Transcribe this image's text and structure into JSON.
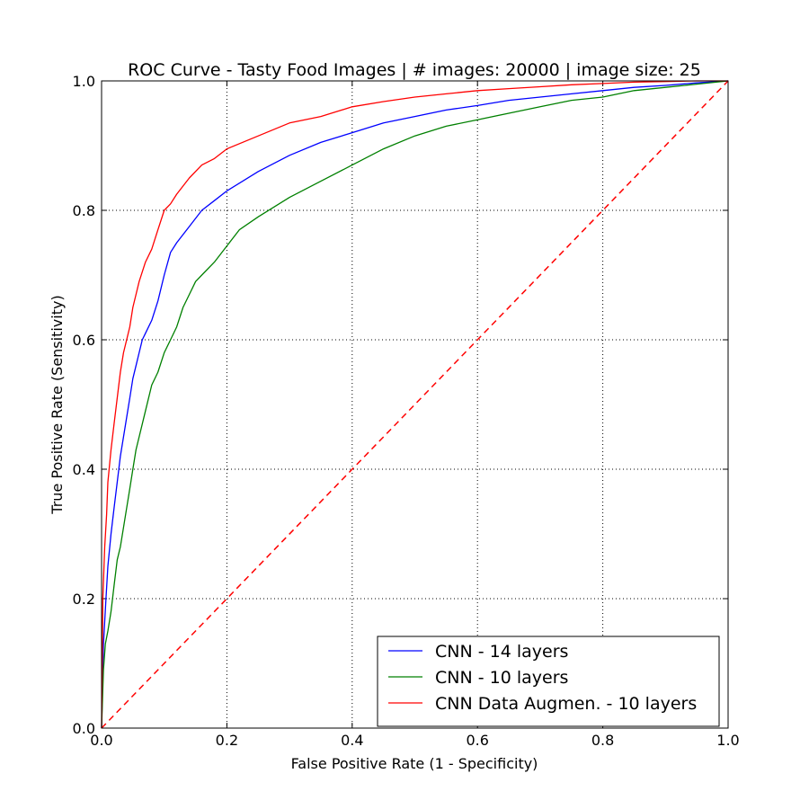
{
  "chart_data": {
    "type": "line",
    "title": "ROC Curve - Tasty Food Images | # images: 20000 | image size: 25",
    "xlabel": "False Positive Rate (1 - Specificity)",
    "ylabel": "True Positive Rate (Sensitivity)",
    "xlim": [
      0.0,
      1.0
    ],
    "ylim": [
      0.0,
      1.0
    ],
    "xticks": [
      "0.0",
      "0.2",
      "0.4",
      "0.6",
      "0.8",
      "1.0"
    ],
    "yticks": [
      "0.0",
      "0.2",
      "0.4",
      "0.6",
      "0.8",
      "1.0"
    ],
    "grid": true,
    "legend_position": "lower-right",
    "series": [
      {
        "name": "CNN - 14 layers",
        "color": "#0000ff",
        "x": [
          0.0,
          0.003,
          0.007,
          0.01,
          0.015,
          0.02,
          0.025,
          0.03,
          0.035,
          0.04,
          0.045,
          0.05,
          0.055,
          0.06,
          0.065,
          0.07,
          0.08,
          0.09,
          0.1,
          0.11,
          0.12,
          0.14,
          0.16,
          0.18,
          0.2,
          0.25,
          0.3,
          0.35,
          0.4,
          0.45,
          0.5,
          0.55,
          0.6,
          0.65,
          0.7,
          0.75,
          0.8,
          0.85,
          0.9,
          0.95,
          1.0
        ],
        "y": [
          0.0,
          0.13,
          0.2,
          0.25,
          0.3,
          0.34,
          0.38,
          0.42,
          0.45,
          0.48,
          0.51,
          0.54,
          0.56,
          0.58,
          0.6,
          0.61,
          0.63,
          0.66,
          0.7,
          0.735,
          0.75,
          0.775,
          0.8,
          0.815,
          0.83,
          0.86,
          0.885,
          0.905,
          0.92,
          0.935,
          0.945,
          0.955,
          0.962,
          0.97,
          0.975,
          0.98,
          0.985,
          0.99,
          0.993,
          0.997,
          1.0
        ]
      },
      {
        "name": "CNN - 10 layers",
        "color": "#008000",
        "x": [
          0.0,
          0.003,
          0.006,
          0.01,
          0.015,
          0.02,
          0.025,
          0.03,
          0.035,
          0.04,
          0.045,
          0.05,
          0.055,
          0.06,
          0.07,
          0.08,
          0.09,
          0.1,
          0.11,
          0.12,
          0.13,
          0.14,
          0.15,
          0.16,
          0.18,
          0.2,
          0.22,
          0.25,
          0.3,
          0.35,
          0.4,
          0.45,
          0.5,
          0.55,
          0.6,
          0.65,
          0.7,
          0.75,
          0.8,
          0.85,
          0.9,
          0.95,
          1.0
        ],
        "y": [
          0.0,
          0.09,
          0.13,
          0.15,
          0.18,
          0.22,
          0.26,
          0.28,
          0.31,
          0.34,
          0.37,
          0.4,
          0.43,
          0.45,
          0.49,
          0.53,
          0.55,
          0.58,
          0.6,
          0.62,
          0.65,
          0.67,
          0.69,
          0.7,
          0.72,
          0.745,
          0.77,
          0.79,
          0.82,
          0.845,
          0.87,
          0.895,
          0.915,
          0.93,
          0.94,
          0.95,
          0.96,
          0.97,
          0.975,
          0.985,
          0.99,
          0.995,
          1.0
        ]
      },
      {
        "name": "CNN Data Augmen. - 10 layers",
        "color": "#ff0000",
        "x": [
          0.0,
          0.002,
          0.005,
          0.008,
          0.01,
          0.015,
          0.02,
          0.025,
          0.03,
          0.035,
          0.04,
          0.045,
          0.05,
          0.055,
          0.06,
          0.07,
          0.08,
          0.09,
          0.1,
          0.11,
          0.12,
          0.14,
          0.16,
          0.18,
          0.2,
          0.25,
          0.3,
          0.35,
          0.4,
          0.45,
          0.5,
          0.55,
          0.6,
          0.65,
          0.7,
          0.75,
          0.8,
          0.85,
          0.9,
          0.95,
          1.0
        ],
        "y": [
          0.0,
          0.2,
          0.28,
          0.33,
          0.38,
          0.43,
          0.47,
          0.51,
          0.55,
          0.58,
          0.6,
          0.62,
          0.65,
          0.67,
          0.69,
          0.72,
          0.74,
          0.77,
          0.8,
          0.81,
          0.825,
          0.85,
          0.87,
          0.88,
          0.895,
          0.915,
          0.935,
          0.945,
          0.96,
          0.968,
          0.975,
          0.98,
          0.985,
          0.988,
          0.991,
          0.994,
          0.996,
          0.998,
          0.999,
          1.0,
          1.0
        ]
      },
      {
        "name": "",
        "color": "#ff0000",
        "dashed": true,
        "x": [
          0.0,
          1.0
        ],
        "y": [
          0.0,
          1.0
        ]
      }
    ]
  }
}
